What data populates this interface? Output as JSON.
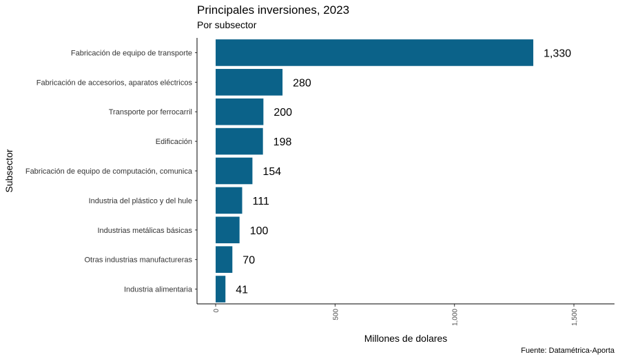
{
  "chart_data": {
    "type": "bar",
    "orientation": "horizontal",
    "title": "Principales inversiones, 2023",
    "subtitle": "Por subsector",
    "xlabel": "Millones de dolares",
    "ylabel": "Subsector",
    "caption": "Fuente: Datamétrica-Aporta",
    "bar_color": "#0b6289",
    "categories": [
      "Fabricación de equipo de transporte",
      "Fabricación de accesorios, aparatos eléctricos",
      "Transporte por ferrocarril",
      "Edificación",
      "Fabricación de equipo de computación, comunica",
      "Industria del plástico y del hule",
      "Industrias metálicas básicas",
      "Otras industrias manufactureras",
      "Industria alimentaria"
    ],
    "values": [
      1330,
      280,
      200,
      198,
      154,
      111,
      100,
      70,
      41
    ],
    "value_labels": [
      "1,330",
      "280",
      "200",
      "198",
      "154",
      "111",
      "100",
      "70",
      "41"
    ],
    "xlim": [
      -78,
      1670
    ],
    "x_ticks": [
      0,
      500,
      1000,
      1500
    ],
    "x_tick_labels": [
      "0",
      "500",
      "1,000",
      "1,500"
    ],
    "grid": false
  }
}
